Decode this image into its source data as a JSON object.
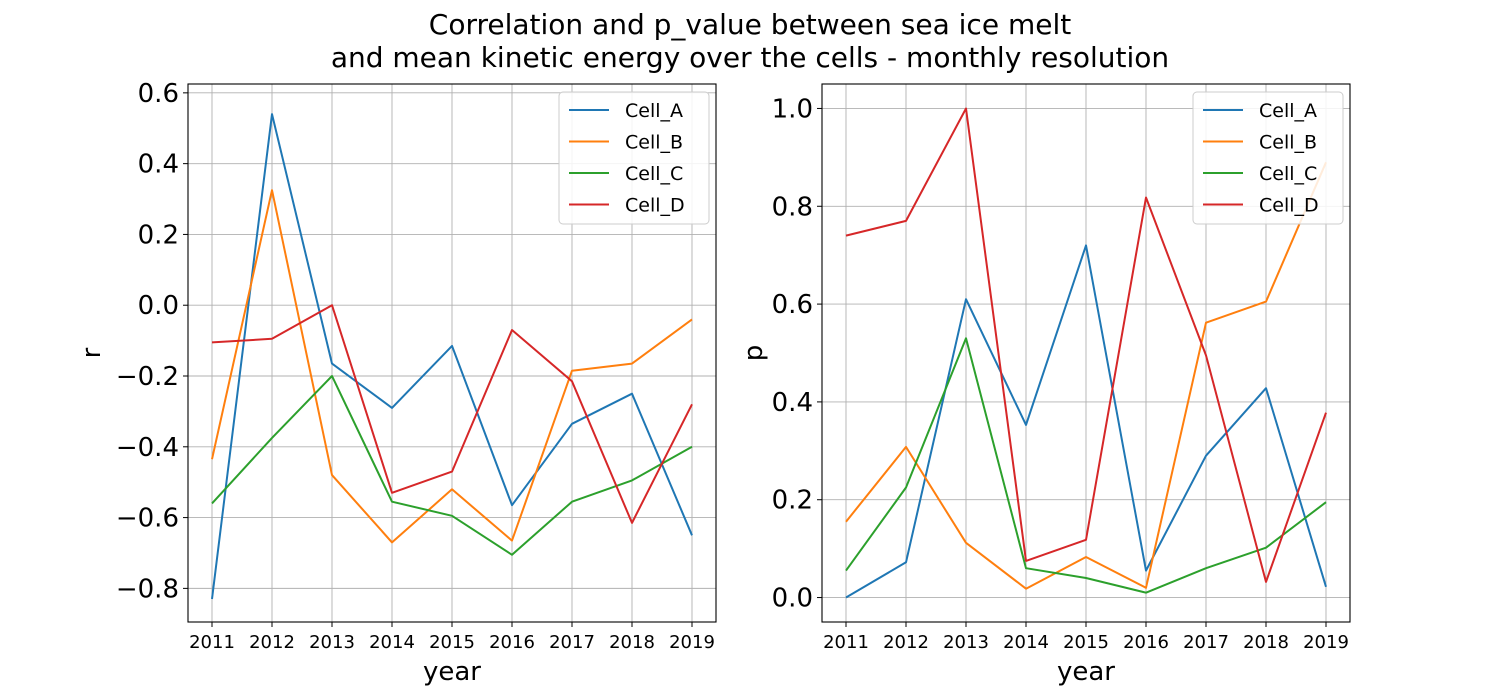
{
  "figure": {
    "suptitle_line1": "Correlation and p_value between sea ice melt",
    "suptitle_line2": "and mean kinetic energy over the cells - monthly resolution"
  },
  "chart_data": [
    {
      "type": "line",
      "title": "",
      "xlabel": "year",
      "ylabel": "r",
      "x": [
        2011,
        2012,
        2013,
        2014,
        2015,
        2016,
        2017,
        2018,
        2019
      ],
      "xlim": [
        2010.6,
        2019.4
      ],
      "ylim": [
        -0.895,
        0.625
      ],
      "yticks": [
        -0.8,
        -0.6,
        -0.4,
        -0.2,
        0.0,
        0.2,
        0.4,
        0.6
      ],
      "ytick_labels": [
        "−0.8",
        "−0.6",
        "−0.4",
        "−0.2",
        "0.0",
        "0.2",
        "0.4",
        "0.6"
      ],
      "grid": true,
      "legend_position": "top-right",
      "series": [
        {
          "name": "Cell_A",
          "color": "#1f77b4",
          "values": [
            -0.83,
            0.54,
            -0.165,
            -0.29,
            -0.115,
            -0.565,
            -0.335,
            -0.25,
            -0.65
          ]
        },
        {
          "name": "Cell_B",
          "color": "#ff7f0e",
          "values": [
            -0.435,
            0.325,
            -0.48,
            -0.67,
            -0.52,
            -0.665,
            -0.185,
            -0.165,
            -0.04
          ]
        },
        {
          "name": "Cell_C",
          "color": "#2ca02c",
          "values": [
            -0.56,
            -0.375,
            -0.2,
            -0.555,
            -0.595,
            -0.705,
            -0.555,
            -0.495,
            -0.4
          ]
        },
        {
          "name": "Cell_D",
          "color": "#d62728",
          "values": [
            -0.105,
            -0.095,
            0.0,
            -0.53,
            -0.47,
            -0.07,
            -0.215,
            -0.615,
            -0.28
          ]
        }
      ]
    },
    {
      "type": "line",
      "title": "",
      "xlabel": "year",
      "ylabel": "p",
      "x": [
        2011,
        2012,
        2013,
        2014,
        2015,
        2016,
        2017,
        2018,
        2019
      ],
      "xlim": [
        2010.6,
        2019.4
      ],
      "ylim": [
        -0.05,
        1.05
      ],
      "yticks": [
        0.0,
        0.2,
        0.4,
        0.6,
        0.8,
        1.0
      ],
      "ytick_labels": [
        "0.0",
        "0.2",
        "0.4",
        "0.6",
        "0.8",
        "1.0"
      ],
      "grid": true,
      "legend_position": "top-right",
      "series": [
        {
          "name": "Cell_A",
          "color": "#1f77b4",
          "values": [
            0.0,
            0.072,
            0.61,
            0.353,
            0.72,
            0.055,
            0.29,
            0.428,
            0.022
          ]
        },
        {
          "name": "Cell_B",
          "color": "#ff7f0e",
          "values": [
            0.155,
            0.308,
            0.112,
            0.018,
            0.083,
            0.02,
            0.562,
            0.605,
            0.89
          ]
        },
        {
          "name": "Cell_C",
          "color": "#2ca02c",
          "values": [
            0.055,
            0.225,
            0.53,
            0.06,
            0.04,
            0.01,
            0.06,
            0.102,
            0.195
          ]
        },
        {
          "name": "Cell_D",
          "color": "#d62728",
          "values": [
            0.74,
            0.77,
            1.0,
            0.075,
            0.118,
            0.818,
            0.495,
            0.032,
            0.378
          ]
        }
      ]
    }
  ]
}
